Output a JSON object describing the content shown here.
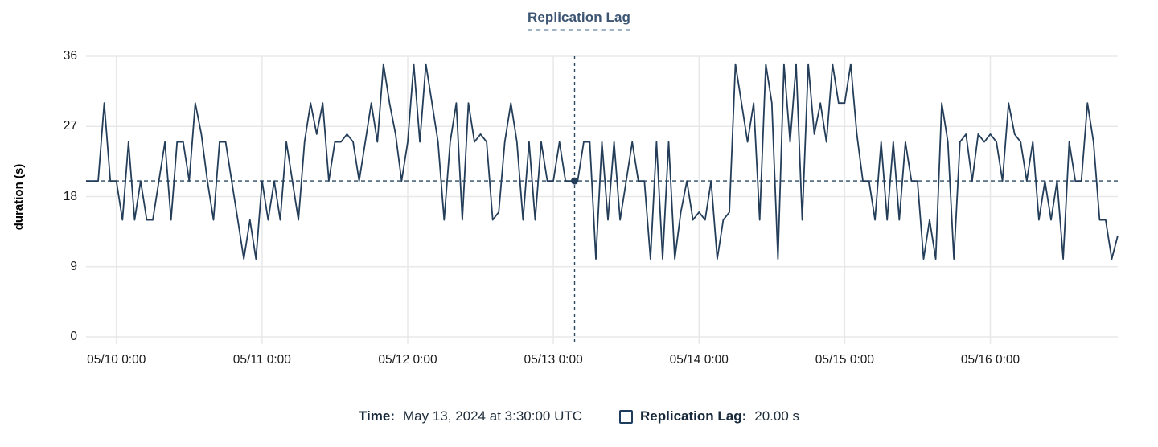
{
  "header": {
    "title": "Replication Lag"
  },
  "y_axis_label": "duration (s)",
  "tooltip": {
    "time_label": "Time:",
    "time_value": "May 13, 2024 at 3:30:00 UTC",
    "series_label": "Replication Lag:",
    "series_value": "20.00 s"
  },
  "colors": {
    "line": "#243e5a",
    "dash": "#2b4a63",
    "grid": "#e8e8e8",
    "axis_text": "#1b1b1b",
    "title": "#3c5573",
    "swatch_border": "#1d3c5e"
  },
  "chart_data": {
    "type": "line",
    "title": "Replication Lag",
    "xlabel": "",
    "ylabel": "duration (s)",
    "ylim": [
      0,
      36
    ],
    "yticks": [
      0,
      9,
      18,
      27,
      36
    ],
    "grid": true,
    "legend_position": "bottom",
    "x_tick_labels": [
      "05/10 0:00",
      "05/11 0:00",
      "05/12 0:00",
      "05/13 0:00",
      "05/14 0:00",
      "05/15 0:00",
      "05/16 0:00"
    ],
    "x_tick_indices": [
      5,
      29,
      53,
      77,
      101,
      125,
      149
    ],
    "x_description": "one point per hour starting 2024-05-09 19:00 UTC, ending 2024-05-16 21:00 UTC",
    "reference_line_y": 20,
    "crosshair": {
      "x_index": 80.5,
      "time": "May 13, 2024 at 3:30:00 UTC",
      "value_s": 20.0
    },
    "series": [
      {
        "name": "Replication Lag",
        "unit": "s",
        "values": [
          20,
          20,
          20,
          30,
          20,
          20,
          15,
          25,
          15,
          20,
          15,
          15,
          20,
          25,
          15,
          25,
          25,
          20,
          30,
          26,
          20,
          15,
          25,
          25,
          20,
          15,
          10,
          15,
          10,
          20,
          15,
          20,
          15,
          25,
          20,
          15,
          25,
          30,
          26,
          30,
          20,
          25,
          25,
          26,
          25,
          20,
          25,
          30,
          25,
          35,
          30,
          26,
          20,
          25,
          35,
          25,
          35,
          30,
          25,
          15,
          25,
          30,
          15,
          30,
          25,
          26,
          25,
          15,
          16,
          25,
          30,
          25,
          15,
          25,
          15,
          25,
          20,
          20,
          25,
          20,
          20,
          20,
          25,
          25,
          10,
          25,
          15,
          25,
          15,
          20,
          25,
          20,
          20,
          10,
          25,
          10,
          25,
          10,
          16,
          20,
          15,
          16,
          15,
          20,
          10,
          15,
          16,
          35,
          30,
          25,
          30,
          15,
          35,
          30,
          10,
          35,
          25,
          35,
          15,
          35,
          26,
          30,
          25,
          35,
          30,
          30,
          35,
          26,
          20,
          20,
          15,
          25,
          15,
          25,
          15,
          25,
          20,
          20,
          10,
          15,
          10,
          30,
          25,
          10,
          25,
          26,
          20,
          26,
          25,
          26,
          25,
          20,
          30,
          26,
          25,
          20,
          25,
          15,
          20,
          15,
          20,
          10,
          25,
          20,
          20,
          30,
          25,
          15,
          15,
          10,
          13
        ]
      }
    ]
  }
}
